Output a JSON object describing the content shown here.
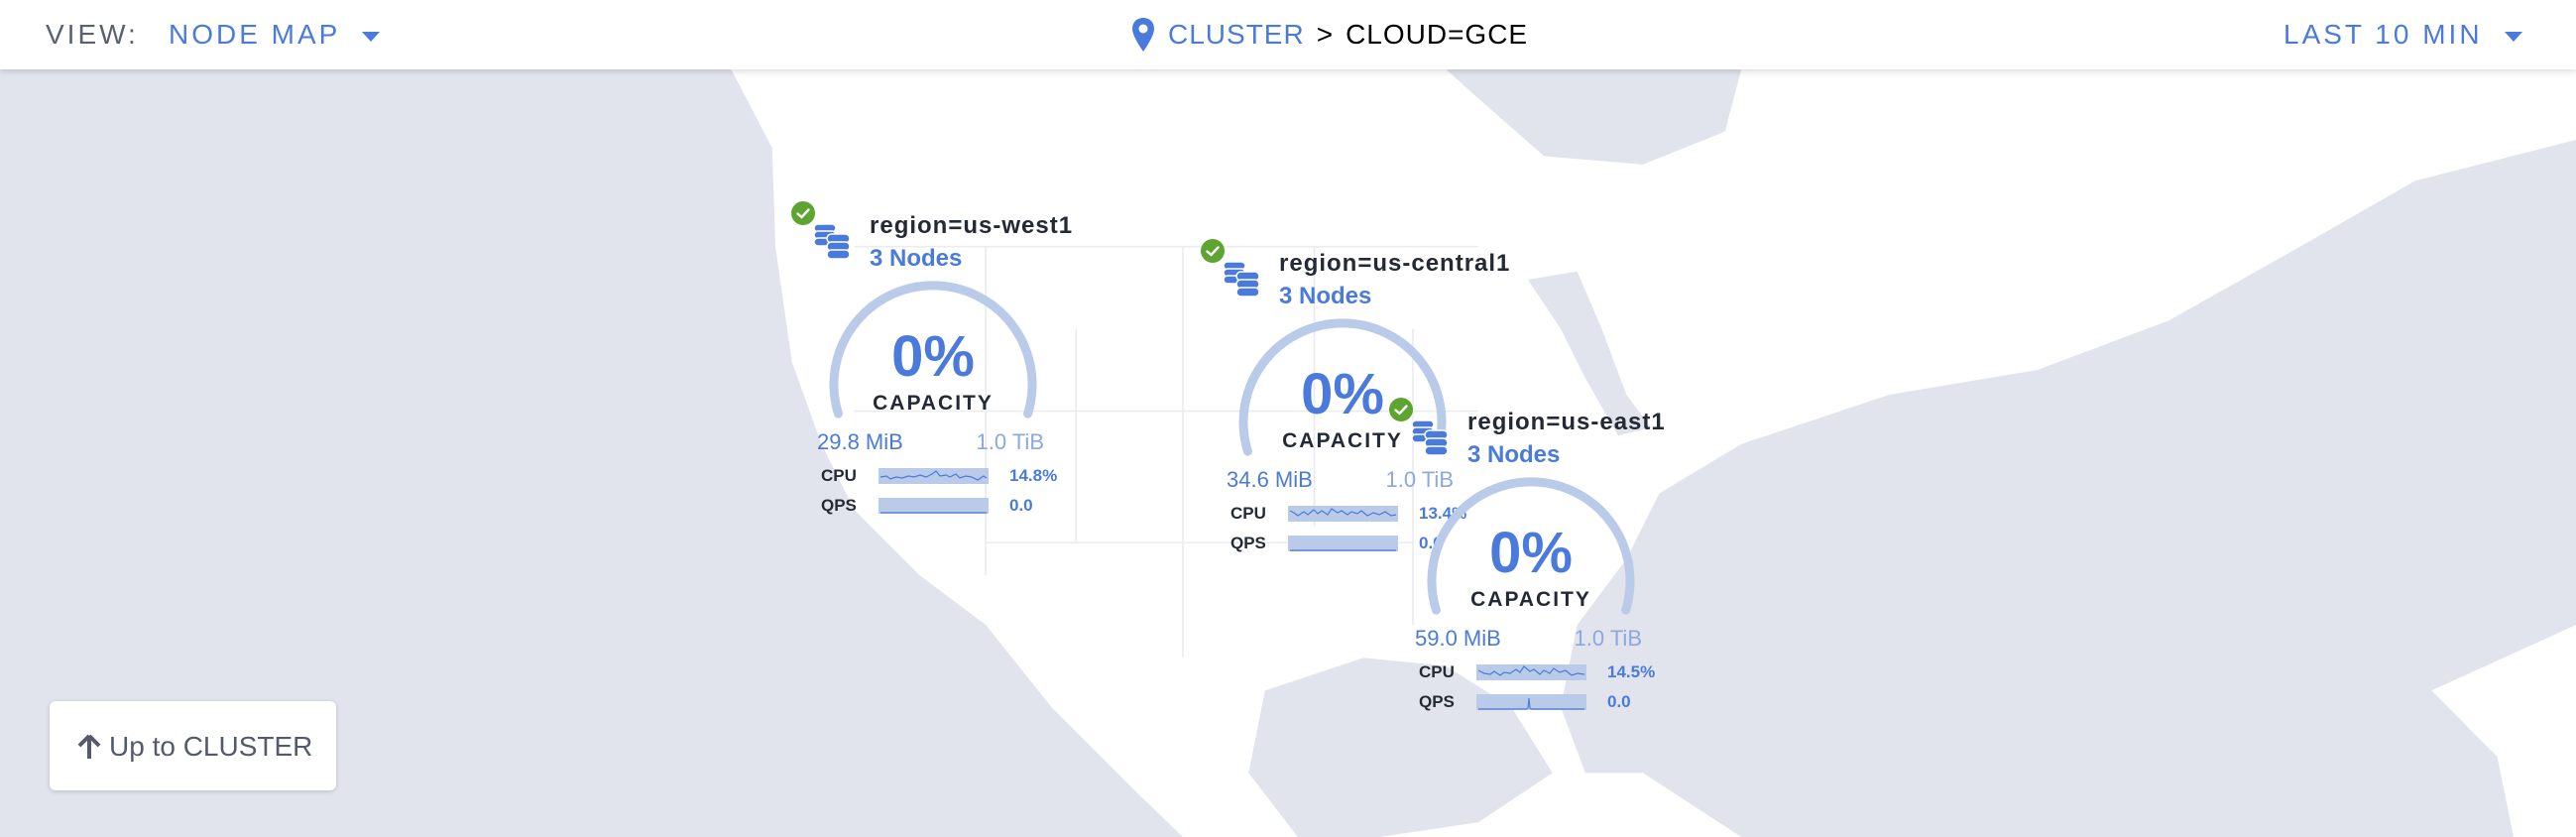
{
  "header": {
    "view_label": "VIEW:",
    "view_value": "NODE MAP",
    "breadcrumb": {
      "root": "CLUSTER",
      "separator": ">",
      "current": "CLOUD=GCE"
    },
    "time_range": "LAST 10 MIN"
  },
  "colors": {
    "accent": "#4a7bdc",
    "healthy": "#5ea431",
    "land": "#ffffff",
    "water": "#e1e4ec",
    "gauge_track": "#b9cbe9"
  },
  "regions": [
    {
      "name": "region=us-west1",
      "nodes": "3 Nodes",
      "status": "healthy",
      "capacity_pct": "0%",
      "capacity_label": "CAPACITY",
      "capacity_fraction": 0,
      "used": "29.8 MiB",
      "total": "1.0 TiB",
      "cpu_label": "CPU",
      "cpu_value": "14.8%",
      "qps_label": "QPS",
      "qps_value": "0.0"
    },
    {
      "name": "region=us-central1",
      "nodes": "3 Nodes",
      "status": "healthy",
      "capacity_pct": "0%",
      "capacity_label": "CAPACITY",
      "capacity_fraction": 0,
      "used": "34.6 MiB",
      "total": "1.0 TiB",
      "cpu_label": "CPU",
      "cpu_value": "13.4%",
      "qps_label": "QPS",
      "qps_value": "0.0"
    },
    {
      "name": "region=us-east1",
      "nodes": "3 Nodes",
      "status": "healthy",
      "capacity_pct": "0%",
      "capacity_label": "CAPACITY",
      "capacity_fraction": 0,
      "used": "59.0 MiB",
      "total": "1.0 TiB",
      "cpu_label": "CPU",
      "cpu_value": "14.5%",
      "qps_label": "QPS",
      "qps_value": "0.0"
    }
  ],
  "up_button": {
    "icon": "arrow-up-icon",
    "label": "Up to CLUSTER"
  }
}
